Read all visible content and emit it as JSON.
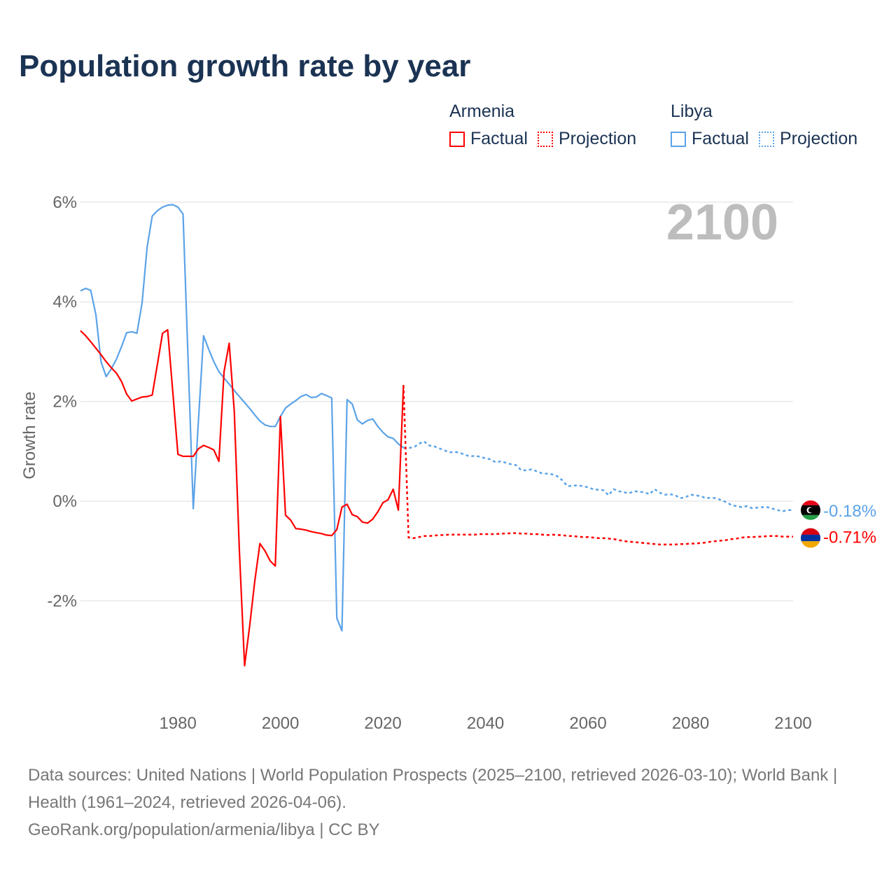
{
  "title": "Population growth rate by year",
  "legend": {
    "groups": [
      {
        "name": "Armenia",
        "factual": "Factual",
        "projection": "Projection",
        "color": "#ff0000"
      },
      {
        "name": "Libya",
        "factual": "Factual",
        "projection": "Projection",
        "color": "#5ba3e8"
      }
    ]
  },
  "footer": {
    "sources": "Data sources: United Nations | World Population Prospects (2025–2100, retrieved 2026-03-10); World Bank | Health (1961–2024, retrieved 2026-04-06).",
    "credit": "GeoRank.org/population/armenia/libya | CC BY"
  },
  "chart_data": {
    "type": "line",
    "title": "Population growth rate by year",
    "xlabel": "",
    "ylabel": "Growth rate",
    "year_label": "2100",
    "xlim": [
      1961,
      2100
    ],
    "ylim": [
      -4,
      6
    ],
    "x_ticks": [
      1980,
      2000,
      2020,
      2040,
      2060,
      2080,
      2100
    ],
    "y_ticks": [
      {
        "v": 6,
        "label": "6%"
      },
      {
        "v": 4,
        "label": "4%"
      },
      {
        "v": 2,
        "label": "2%"
      },
      {
        "v": 0,
        "label": "0%"
      },
      {
        "v": -2,
        "label": "-2%"
      }
    ],
    "grid": true,
    "series": [
      {
        "name": "Armenia",
        "color": "#ff0000",
        "end_label": "-0.71%",
        "factual_start": 1961,
        "factual": [
          3.42,
          3.32,
          3.2,
          3.07,
          2.94,
          2.8,
          2.68,
          2.57,
          2.4,
          2.15,
          2.01,
          2.05,
          2.09,
          2.1,
          2.13,
          2.75,
          3.37,
          3.44,
          2.2,
          0.94,
          0.9,
          0.9,
          0.9,
          1.05,
          1.12,
          1.08,
          1.03,
          0.8,
          2.6,
          3.17,
          1.8,
          -1.0,
          -3.3,
          -2.5,
          -1.6,
          -0.85,
          -1.0,
          -1.2,
          -1.3,
          1.7,
          -0.28,
          -0.38,
          -0.55,
          -0.56,
          -0.58,
          -0.61,
          -0.63,
          -0.65,
          -0.68,
          -0.69,
          -0.57,
          -0.12,
          -0.06,
          -0.27,
          -0.31,
          -0.42,
          -0.44,
          -0.36,
          -0.21,
          -0.03,
          0.03,
          0.24,
          -0.18,
          2.33
        ],
        "projection_start": 2025,
        "projection": [
          -0.73,
          -0.74,
          -0.72,
          -0.7,
          -0.7,
          -0.69,
          -0.68,
          -0.68,
          -0.67,
          -0.67,
          -0.67,
          -0.67,
          -0.67,
          -0.67,
          -0.66,
          -0.66,
          -0.66,
          -0.66,
          -0.65,
          -0.65,
          -0.64,
          -0.64,
          -0.65,
          -0.65,
          -0.66,
          -0.66,
          -0.67,
          -0.68,
          -0.67,
          -0.68,
          -0.68,
          -0.7,
          -0.7,
          -0.71,
          -0.72,
          -0.72,
          -0.73,
          -0.74,
          -0.74,
          -0.75,
          -0.76,
          -0.78,
          -0.8,
          -0.81,
          -0.82,
          -0.83,
          -0.84,
          -0.85,
          -0.86,
          -0.87,
          -0.87,
          -0.87,
          -0.87,
          -0.86,
          -0.86,
          -0.85,
          -0.85,
          -0.84,
          -0.83,
          -0.81,
          -0.8,
          -0.79,
          -0.78,
          -0.76,
          -0.75,
          -0.73,
          -0.72,
          -0.72,
          -0.71,
          -0.71,
          -0.7,
          -0.7,
          -0.7,
          -0.71,
          -0.71,
          -0.71
        ]
      },
      {
        "name": "Libya",
        "color": "#5ba3e8",
        "end_label": "-0.18%",
        "factual_start": 1961,
        "factual": [
          4.22,
          4.27,
          4.23,
          3.74,
          2.8,
          2.5,
          2.65,
          2.85,
          3.1,
          3.38,
          3.4,
          3.37,
          3.97,
          5.1,
          5.72,
          5.83,
          5.9,
          5.94,
          5.95,
          5.9,
          5.76,
          2.8,
          -0.15,
          1.6,
          3.32,
          3.05,
          2.8,
          2.6,
          2.47,
          2.35,
          2.22,
          2.1,
          1.98,
          1.86,
          1.73,
          1.61,
          1.53,
          1.5,
          1.5,
          1.7,
          1.87,
          1.95,
          2.02,
          2.1,
          2.14,
          2.08,
          2.09,
          2.16,
          2.12,
          2.07,
          -2.35,
          -2.6,
          2.04,
          1.95,
          1.63,
          1.55,
          1.62,
          1.65,
          1.5,
          1.38,
          1.29,
          1.26,
          1.15,
          1.07
        ],
        "projection_start": 2025,
        "projection": [
          1.07,
          1.08,
          1.15,
          1.2,
          1.12,
          1.1,
          1.06,
          1.02,
          0.98,
          0.99,
          0.97,
          0.93,
          0.9,
          0.91,
          0.89,
          0.86,
          0.84,
          0.78,
          0.8,
          0.77,
          0.74,
          0.72,
          0.62,
          0.62,
          0.64,
          0.6,
          0.56,
          0.55,
          0.54,
          0.5,
          0.42,
          0.3,
          0.31,
          0.32,
          0.3,
          0.28,
          0.24,
          0.23,
          0.22,
          0.12,
          0.24,
          0.2,
          0.18,
          0.16,
          0.2,
          0.19,
          0.18,
          0.14,
          0.24,
          0.17,
          0.13,
          0.14,
          0.12,
          0.06,
          0.08,
          0.13,
          0.12,
          0.1,
          0.06,
          0.07,
          0.06,
          0.02,
          -0.02,
          -0.08,
          -0.1,
          -0.12,
          -0.1,
          -0.14,
          -0.13,
          -0.12,
          -0.12,
          -0.15,
          -0.18,
          -0.2,
          -0.18,
          -0.18
        ]
      }
    ]
  }
}
